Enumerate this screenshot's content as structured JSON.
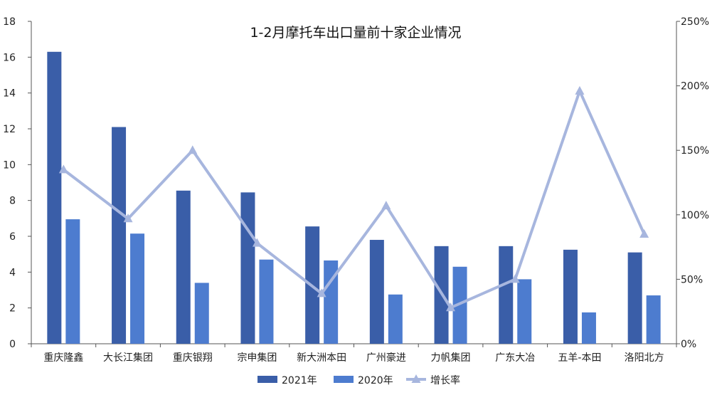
{
  "chart_data": {
    "type": "bar",
    "title": "1-2月摩托车出口量前十家企业情况",
    "categories": [
      "重庆隆鑫",
      "大长江集团",
      "重庆银翔",
      "宗申集团",
      "新大洲本田",
      "广州豪进",
      "力帆集团",
      "广东大冶",
      "五羊-本田",
      "洛阳北方"
    ],
    "y_left": {
      "ylim": [
        0,
        18
      ],
      "ticks": [
        "0",
        "2",
        "4",
        "6",
        "8",
        "10",
        "12",
        "14",
        "16",
        "18"
      ]
    },
    "y_right": {
      "ylim": [
        0,
        250
      ],
      "ticks": [
        "0%",
        "50%",
        "100%",
        "150%",
        "200%",
        "250%"
      ]
    },
    "series": [
      {
        "name": "2021年",
        "kind": "bar",
        "axis": "left",
        "color": "#3a5ea8",
        "values": [
          16.3,
          12.1,
          8.55,
          8.45,
          6.55,
          5.8,
          5.45,
          5.45,
          5.25,
          5.1
        ]
      },
      {
        "name": "2020年",
        "kind": "bar",
        "axis": "left",
        "color": "#4d7ccf",
        "values": [
          6.95,
          6.15,
          3.4,
          4.7,
          4.65,
          2.75,
          4.3,
          3.6,
          1.75,
          2.7
        ]
      },
      {
        "name": "增长率",
        "kind": "line",
        "axis": "right",
        "color": "#a7b6de",
        "values": [
          135,
          97,
          150,
          78,
          39,
          107,
          28,
          50,
          196,
          85
        ]
      }
    ],
    "grid": false,
    "legend": "bottom"
  }
}
